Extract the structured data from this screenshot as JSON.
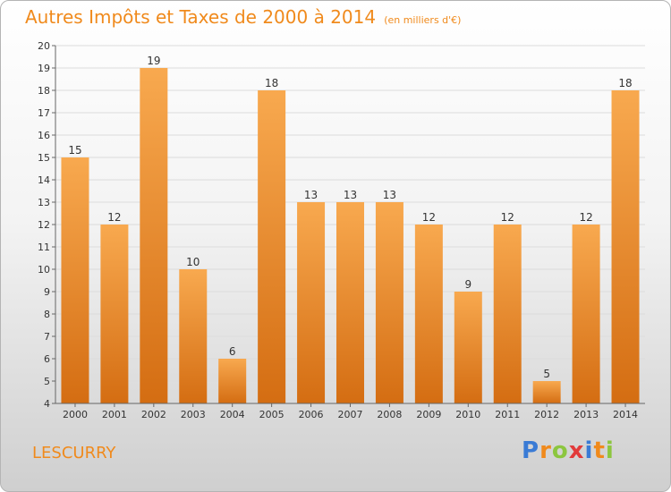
{
  "place": "LESCURRY",
  "logo": {
    "text": "Proxiti",
    "letters": [
      {
        "ch": "P",
        "color": "#3a7bd5"
      },
      {
        "ch": "r",
        "color": "#f08a1c"
      },
      {
        "ch": "o",
        "color": "#8cc63f"
      },
      {
        "ch": "x",
        "color": "#e23b3b"
      },
      {
        "ch": "i",
        "color": "#3a7bd5"
      },
      {
        "ch": "t",
        "color": "#f08a1c"
      },
      {
        "ch": "i",
        "color": "#8cc63f"
      }
    ]
  },
  "colors": {
    "bar_top": "#f8a94f",
    "bar_bottom": "#d46d12",
    "title": "#f08a1c"
  },
  "chart_data": {
    "type": "bar",
    "title": "Autres Impôts et Taxes de 2000 à 2014",
    "subtitle": "(en milliers d'€)",
    "categories": [
      "2000",
      "2001",
      "2002",
      "2003",
      "2004",
      "2005",
      "2006",
      "2007",
      "2008",
      "2009",
      "2010",
      "2011",
      "2012",
      "2013",
      "2014"
    ],
    "values": [
      15,
      12,
      19,
      10,
      6,
      18,
      13,
      13,
      13,
      12,
      9,
      12,
      5,
      12,
      18
    ],
    "ylim": [
      4,
      20
    ],
    "yticks": [
      4,
      5,
      6,
      7,
      8,
      9,
      10,
      11,
      12,
      13,
      14,
      15,
      16,
      17,
      18,
      19,
      20
    ],
    "grid": true,
    "xlabel": "",
    "ylabel": ""
  }
}
